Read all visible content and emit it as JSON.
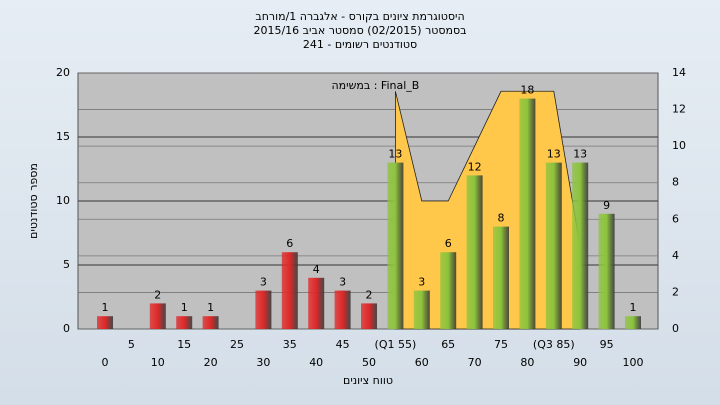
{
  "chart_data": {
    "type": "bar",
    "title": "היסטוגרמת ציונים בקורס - אלגברה 1/מורחב",
    "subtitle": "בסמסטר  (02/2015)  סמסטר אביב 2015/16",
    "subtitle2": "סטודנטים רשומים - 241",
    "xlabel": "טווח ציונים",
    "ylabel": "מספר סטודנטים",
    "categories": [
      "0",
      "5",
      "10",
      "15",
      "20",
      "25",
      "30",
      "35",
      "40",
      "45",
      "50",
      "(Q1 55)",
      "60",
      "65",
      "70",
      "75",
      "80",
      "(Q3 85)",
      "90",
      "95",
      "100"
    ],
    "series": [
      {
        "values": [
          1,
          0,
          2,
          1,
          1,
          0,
          3,
          6,
          4,
          3,
          2,
          13,
          3,
          6,
          12,
          8,
          18,
          13,
          13,
          9,
          1
        ],
        "colors": [
          "#e02828",
          "#e02828",
          "#e02828",
          "#e02828",
          "#e02828",
          "#e02828",
          "#e02828",
          "#e02828",
          "#e02828",
          "#e02828",
          "#e02828",
          "#8cc43c",
          "#8cc43c",
          "#8cc43c",
          "#8cc43c",
          "#8cc43c",
          "#8cc43c",
          "#8cc43c",
          "#8cc43c",
          "#8cc43c",
          "#8cc43c"
        ]
      },
      {
        "name": "במשימה : Final_B",
        "type": "area",
        "axis": "y2",
        "color": "#ffc84a",
        "values": [
          null,
          null,
          null,
          null,
          null,
          null,
          null,
          null,
          null,
          null,
          null,
          13,
          7,
          7,
          10,
          13,
          13,
          13,
          4.5,
          null,
          null
        ]
      }
    ],
    "ylim": [
      0,
      20
    ],
    "yticks": [
      0,
      5,
      10,
      15,
      20
    ],
    "y2lim": [
      0,
      14
    ],
    "y2ticks": [
      0,
      2,
      4,
      6,
      8,
      10,
      12,
      14
    ],
    "grid": true
  }
}
